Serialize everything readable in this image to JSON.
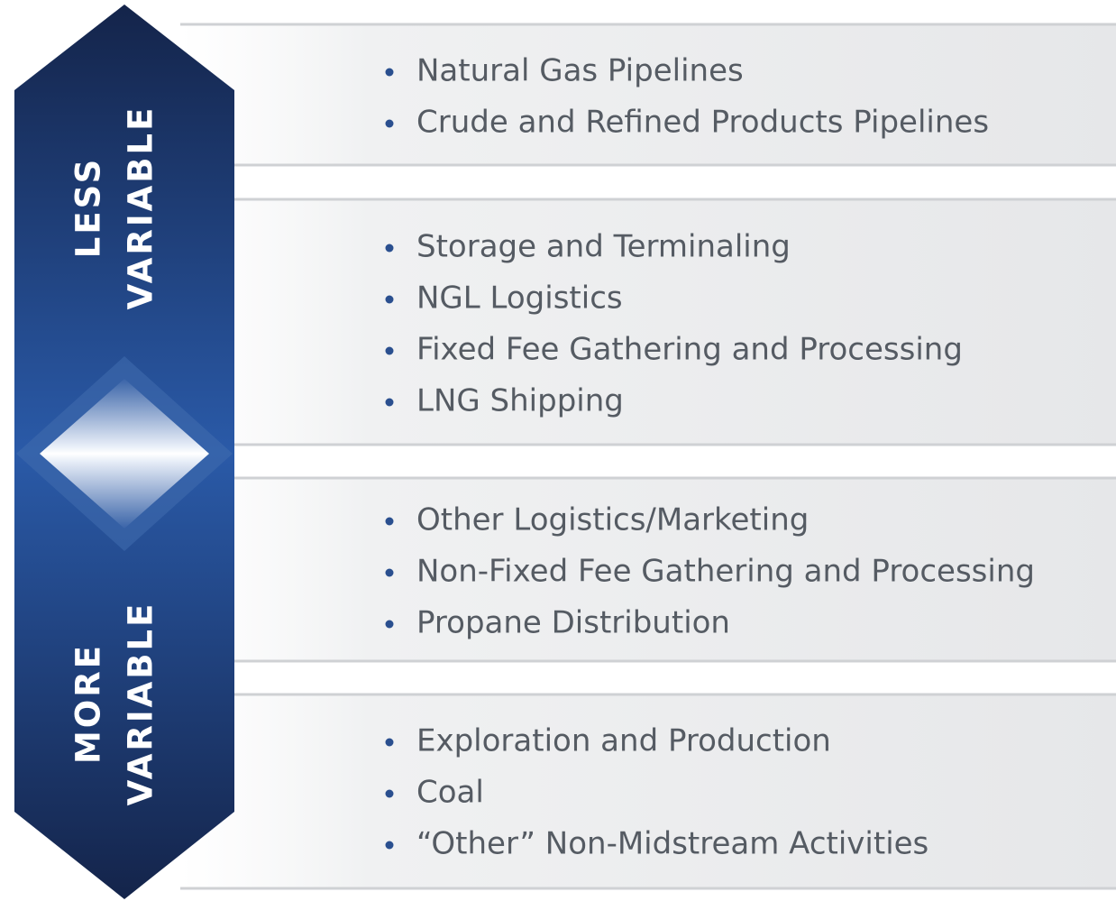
{
  "left_labels": [
    {
      "lines": [
        "LESS",
        "VARIABLE"
      ]
    },
    {
      "lines": [
        "MORE",
        "VARIABLE"
      ]
    }
  ],
  "groups": [
    {
      "items": [
        "Natural Gas Pipelines",
        "Crude and Refined Products Pipelines"
      ]
    },
    {
      "items": [
        "Storage and Terminaling",
        "NGL Logistics",
        "Fixed Fee Gathering and Processing",
        "LNG Shipping"
      ]
    },
    {
      "items": [
        "Other Logistics/Marketing",
        "Non-Fixed Fee Gathering and Processing",
        "Propane Distribution"
      ]
    },
    {
      "items": [
        "Exploration and Production",
        "Coal",
        "“Other” Non-Midstream Activities"
      ]
    }
  ]
}
